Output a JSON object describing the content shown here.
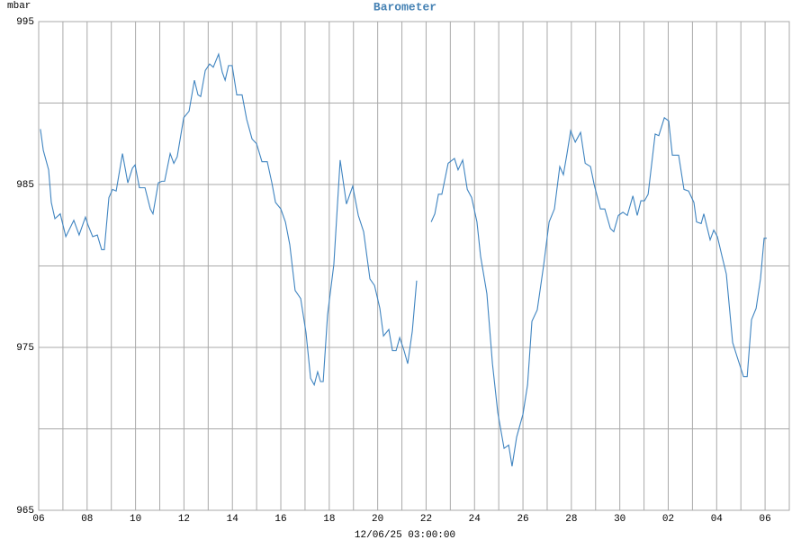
{
  "chart_data": {
    "type": "line",
    "title": "Barometer",
    "title_color": "#4682b4",
    "y_label": "mbar",
    "x_label": "12/06/25 03:00:00",
    "color": "#3f84c0",
    "grid": true,
    "grid_color": "#a9a9a9",
    "xlim": [
      6,
      37
    ],
    "ylim": [
      965,
      995
    ],
    "xticks": [
      {
        "value": 6,
        "label": "06"
      },
      {
        "value": 8,
        "label": "08"
      },
      10,
      12,
      14,
      16,
      18,
      20,
      22,
      24,
      26,
      28,
      30,
      {
        "value": 32,
        "label": "02"
      },
      {
        "value": 34,
        "label": "04"
      },
      {
        "value": 36,
        "label": "06"
      }
    ],
    "xminorticks": [
      7,
      9,
      11,
      13,
      15,
      17,
      19,
      21,
      23,
      25,
      27,
      29,
      31,
      33,
      35,
      37
    ],
    "yticks": [
      965,
      975,
      985,
      995
    ],
    "yminorticks": [
      970,
      980,
      990
    ],
    "x": [
      6.07,
      6.19,
      6.41,
      6.52,
      6.67,
      6.89,
      7.12,
      7.45,
      7.67,
      7.93,
      8.04,
      8.23,
      8.42,
      8.6,
      8.71,
      8.9,
      9.05,
      9.2,
      9.46,
      9.68,
      9.87,
      9.98,
      10.16,
      10.39,
      10.61,
      10.72,
      10.94,
      11.09,
      11.2,
      11.43,
      11.58,
      11.72,
      11.99,
      12.21,
      12.43,
      12.58,
      12.69,
      12.88,
      13.06,
      13.21,
      13.43,
      13.58,
      13.7,
      13.84,
      13.99,
      14.18,
      14.4,
      14.59,
      14.81,
      15,
      15.22,
      15.44,
      15.63,
      15.78,
      16,
      16.19,
      16.37,
      16.59,
      16.82,
      17.04,
      17.23,
      17.38,
      17.52,
      17.64,
      17.75,
      17.93,
      18.19,
      18.45,
      18.71,
      18.97,
      19.2,
      19.42,
      19.68,
      19.87,
      20.09,
      20.24,
      20.46,
      20.61,
      20.76,
      20.91,
      21.09,
      21.24,
      21.43,
      21.61,
      21.9,
      22.21,
      22.36,
      22.51,
      22.65,
      22.91,
      23.17,
      23.32,
      23.51,
      23.7,
      23.88,
      24.1,
      24.25,
      24.51,
      24.74,
      24.96,
      25.22,
      25.41,
      25.55,
      25.74,
      26,
      26.19,
      26.37,
      26.59,
      26.86,
      27.08,
      27.3,
      27.52,
      27.67,
      27.82,
      27.97,
      28.16,
      28.38,
      28.57,
      28.79,
      28.94,
      29.2,
      29.38,
      29.61,
      29.75,
      29.94,
      30.13,
      30.31,
      30.54,
      30.72,
      30.87,
      31.02,
      31.17,
      31.46,
      31.61,
      31.84,
      32.02,
      32.17,
      32.43,
      32.65,
      32.84,
      33.06,
      33.17,
      33.36,
      33.47,
      33.73,
      33.88,
      34.03,
      34.22,
      34.4,
      34.66,
      34.85,
      35.11,
      35.26,
      35.44,
      35.63,
      35.81,
      35.96,
      36.07
    ],
    "values": [
      988.4,
      987.1,
      985.9,
      983.9,
      982.9,
      983.2,
      981.8,
      982.8,
      981.9,
      983.0,
      982.5,
      981.8,
      981.9,
      981.0,
      981.0,
      984.2,
      984.7,
      984.6,
      986.9,
      985.1,
      986.0,
      986.2,
      984.8,
      984.8,
      983.5,
      983.2,
      985.1,
      985.2,
      985.2,
      986.9,
      986.3,
      986.7,
      989.1,
      989.5,
      991.4,
      990.5,
      990.4,
      992.0,
      992.4,
      992.2,
      993.0,
      991.9,
      991.4,
      992.3,
      992.3,
      990.5,
      990.5,
      989.0,
      987.8,
      987.5,
      986.4,
      986.4,
      985.1,
      983.9,
      983.5,
      982.7,
      981.3,
      978.5,
      978.0,
      975.9,
      973.1,
      972.7,
      973.5,
      972.9,
      972.9,
      977.0,
      980.1,
      986.5,
      983.8,
      984.9,
      983.1,
      982.1,
      979.2,
      978.8,
      977.4,
      975.7,
      976.1,
      974.8,
      974.8,
      975.6,
      974.8,
      974.0,
      976.0,
      979.1,
      null,
      982.7,
      983.2,
      984.4,
      984.4,
      986.3,
      986.6,
      985.9,
      986.5,
      984.7,
      984.2,
      982.7,
      980.6,
      978.3,
      974.0,
      971.0,
      968.8,
      969.0,
      967.7,
      969.5,
      970.9,
      972.7,
      976.6,
      977.3,
      980.1,
      982.7,
      983.5,
      986.1,
      985.6,
      986.9,
      988.3,
      987.6,
      988.2,
      986.3,
      986.1,
      985.0,
      983.5,
      983.5,
      982.3,
      982.1,
      983.1,
      983.3,
      983.1,
      984.3,
      983.1,
      984.0,
      984.0,
      984.4,
      988.1,
      988.0,
      989.1,
      988.9,
      986.8,
      986.8,
      984.7,
      984.6,
      983.9,
      982.7,
      982.6,
      983.2,
      981.6,
      982.2,
      981.8,
      980.6,
      979.5,
      975.3,
      974.4,
      973.2,
      973.2,
      976.7,
      977.4,
      979.2,
      981.7,
      981.7
    ]
  }
}
